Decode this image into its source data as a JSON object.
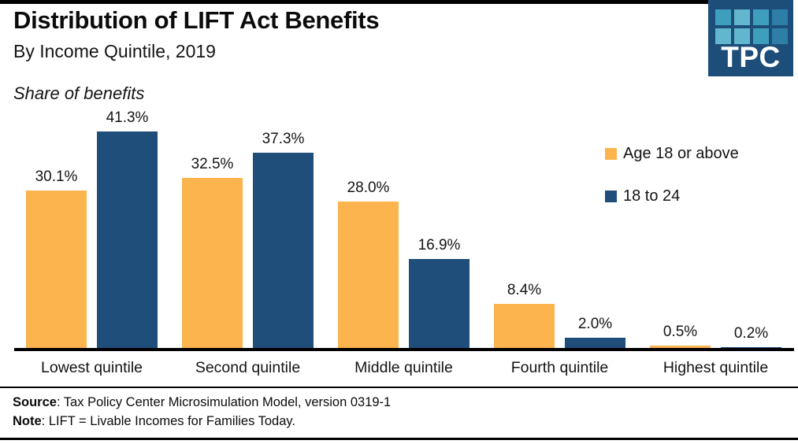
{
  "header": {
    "title": "Distribution of LIFT Act Benefits",
    "subtitle": "By Income Quintile, 2019",
    "axis_note": "Share of benefits"
  },
  "logo": {
    "text": "TPC",
    "bg_color": "#1D4E79",
    "square_colors": [
      [
        "#3E9FBC",
        "#62B7CE",
        "#3E9FBC",
        "#2E7FA8"
      ],
      [
        "#62B7CE",
        "#62B7CE",
        "#3E9FBC",
        "#2E7FA8"
      ]
    ]
  },
  "chart_data": {
    "type": "bar",
    "title": "Distribution of LIFT Act Benefits",
    "subtitle": "By Income Quintile, 2019",
    "ylabel": "Share of benefits",
    "xlabel": "",
    "categories": [
      "Lowest quintile",
      "Second quintile",
      "Middle quintile",
      "Fourth quintile",
      "Highest quintile"
    ],
    "series": [
      {
        "name": "Age 18 or above",
        "color": "#FBB44E",
        "values": [
          30.1,
          32.5,
          28.0,
          8.4,
          0.5
        ]
      },
      {
        "name": "18 to 24",
        "color": "#1E4E79",
        "values": [
          41.3,
          37.3,
          16.9,
          2.0,
          0.2
        ]
      }
    ],
    "value_label_format": "percent-one-decimal",
    "ylim": [
      0,
      45
    ],
    "grid": false,
    "legend_position": "right",
    "axis_color": "#000000"
  },
  "footer": {
    "source_label": "Source",
    "source_text": ": Tax Policy Center Microsimulation Model, version 0319-1",
    "note_label": "Note",
    "note_text": ": LIFT = Livable Incomes for Families Today."
  }
}
